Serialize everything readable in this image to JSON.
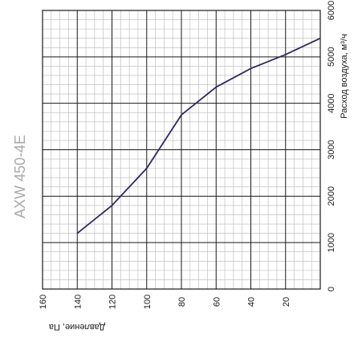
{
  "chart_data": {
    "type": "line",
    "title": "AXW 450-4E",
    "xlabel": "Давление, Па",
    "ylabel": "Расход воздуха, м³/ч",
    "x_ticks": [
      "160",
      "140",
      "120",
      "100",
      "80",
      "60",
      "40",
      "20"
    ],
    "y_ticks": [
      "0",
      "1000",
      "2000",
      "3000",
      "4000",
      "5000",
      "6000"
    ],
    "xlim": [
      0,
      160
    ],
    "ylim": [
      0,
      6000
    ],
    "x_reversed": true,
    "grid": true,
    "series": [
      {
        "color": "#2e2a5c",
        "points": [
          {
            "pressure": 140,
            "flow": 1200
          },
          {
            "pressure": 120,
            "flow": 1800
          },
          {
            "pressure": 100,
            "flow": 2600
          },
          {
            "pressure": 80,
            "flow": 3750
          },
          {
            "pressure": 60,
            "flow": 4350
          },
          {
            "pressure": 40,
            "flow": 4750
          },
          {
            "pressure": 20,
            "flow": 5050
          },
          {
            "pressure": 0,
            "flow": 5400
          }
        ]
      }
    ]
  }
}
